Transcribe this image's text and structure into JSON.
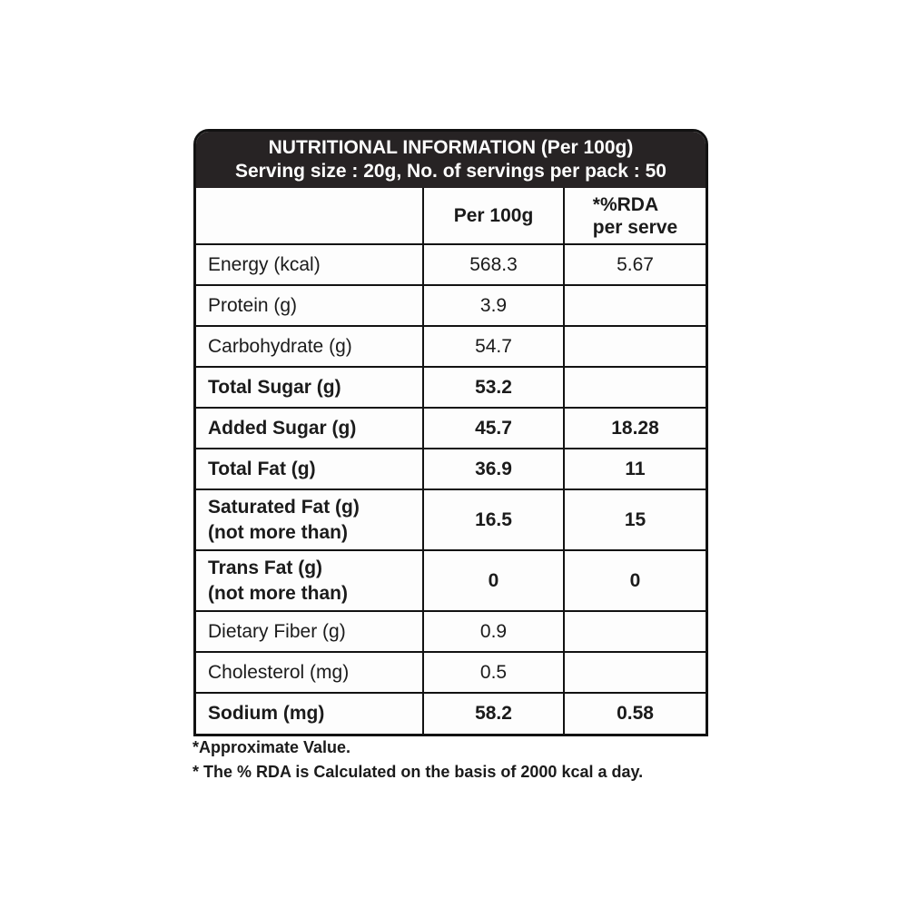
{
  "header": {
    "title": "NUTRITIONAL INFORMATION (Per 100g)",
    "subtitle": "Serving size : 20g, No. of servings per pack : 50"
  },
  "table": {
    "columns": {
      "nutrient": "",
      "per_100g": "Per 100g",
      "rda_line1": "*%RDA",
      "rda_line2": "per serve"
    },
    "rows": [
      {
        "label": "Energy (kcal)",
        "per_100g": "568.3",
        "rda_per_serve": "5.67",
        "bold": false
      },
      {
        "label": "Protein (g)",
        "per_100g": "3.9",
        "rda_per_serve": "",
        "bold": false
      },
      {
        "label": "Carbohydrate (g)",
        "per_100g": "54.7",
        "rda_per_serve": "",
        "bold": false
      },
      {
        "label": "Total Sugar (g)",
        "per_100g": "53.2",
        "rda_per_serve": "",
        "bold": true
      },
      {
        "label": "Added Sugar (g)",
        "per_100g": "45.7",
        "rda_per_serve": "18.28",
        "bold": true
      },
      {
        "label": "Total Fat (g)",
        "per_100g": "36.9",
        "rda_per_serve": "11",
        "bold": true
      },
      {
        "label": "Saturated Fat (g)",
        "label_line2": "(not more than)",
        "per_100g": "16.5",
        "rda_per_serve": "15",
        "bold": true
      },
      {
        "label": "Trans Fat (g)",
        "label_line2": "(not more than)",
        "per_100g": "0",
        "rda_per_serve": "0",
        "bold": true
      },
      {
        "label": "Dietary Fiber (g)",
        "per_100g": "0.9",
        "rda_per_serve": "",
        "bold": false
      },
      {
        "label": "Cholesterol (mg)",
        "per_100g": "0.5",
        "rda_per_serve": "",
        "bold": false
      },
      {
        "label": "Sodium (mg)",
        "per_100g": "58.2",
        "rda_per_serve": "0.58",
        "bold": true
      }
    ]
  },
  "footnotes": [
    "*Approximate Value.",
    "* The % RDA is Calculated on the basis of 2000 kcal a day."
  ],
  "colors": {
    "header_bg": "#272324",
    "border": "#121212",
    "text": "#1b1b1b"
  }
}
